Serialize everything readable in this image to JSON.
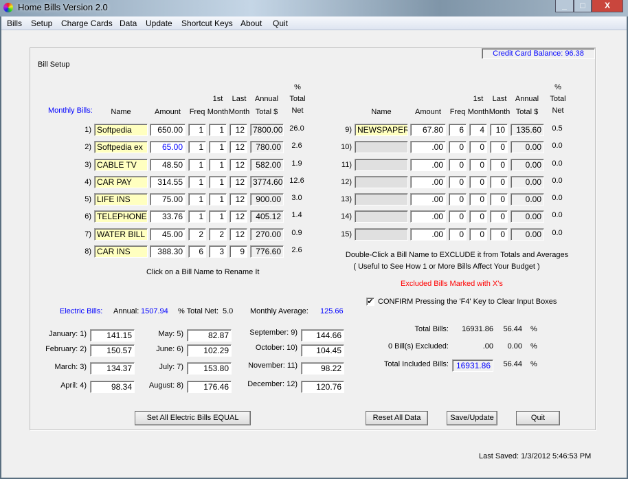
{
  "window": {
    "title": "Home Bills  Version 2.0",
    "controls": [
      "_",
      "□",
      "X"
    ]
  },
  "menu": [
    "Bills",
    "Setup",
    "Charge Cards",
    "Data",
    "Update",
    "Shortcut Keys",
    "About",
    "Quit"
  ],
  "credit_card_balance": "Credit Card Balance:  96.38",
  "group_title": "Bill Setup",
  "headers": {
    "monthly_bills": "Monthly Bills:",
    "name": "Name",
    "amount": "Amount",
    "freq": "Freq",
    "first": "1st",
    "first2": "Month",
    "last": "Last",
    "last2": "Month",
    "annual": "Annual",
    "annual2": "Total $",
    "pct": "%",
    "pct2": "Total",
    "pct3": "Net"
  },
  "bills_left": [
    {
      "n": "1)",
      "name": "Softpedia",
      "amount": "650.00",
      "freq": "1",
      "first": "1",
      "last": "12",
      "annual": "7800.00",
      "pct": "26.0"
    },
    {
      "n": "2)",
      "name": "Softpedia ex",
      "amount": "65.00",
      "freq": "1",
      "first": "1",
      "last": "12",
      "annual": "780.00",
      "pct": "2.6",
      "highlight": true
    },
    {
      "n": "3)",
      "name": "CABLE TV",
      "amount": "48.50",
      "freq": "1",
      "first": "1",
      "last": "12",
      "annual": "582.00",
      "pct": "1.9"
    },
    {
      "n": "4)",
      "name": "CAR PAY",
      "amount": "314.55",
      "freq": "1",
      "first": "1",
      "last": "12",
      "annual": "3774.60",
      "pct": "12.6"
    },
    {
      "n": "5)",
      "name": "LIFE INS",
      "amount": "75.00",
      "freq": "1",
      "first": "1",
      "last": "12",
      "annual": "900.00",
      "pct": "3.0"
    },
    {
      "n": "6)",
      "name": "TELEPHONE",
      "amount": "33.76",
      "freq": "1",
      "first": "1",
      "last": "12",
      "annual": "405.12",
      "pct": "1.4"
    },
    {
      "n": "7)",
      "name": "WATER BILL",
      "amount": "45.00",
      "freq": "2",
      "first": "2",
      "last": "12",
      "annual": "270.00",
      "pct": "0.9"
    },
    {
      "n": "8)",
      "name": "CAR INS",
      "amount": "388.30",
      "freq": "6",
      "first": "3",
      "last": "9",
      "annual": "776.60",
      "pct": "2.6"
    }
  ],
  "bills_right": [
    {
      "n": "9)",
      "name": "NEWSPAPER",
      "amount": "67.80",
      "freq": "6",
      "first": "4",
      "last": "10",
      "annual": "135.60",
      "pct": "0.5"
    },
    {
      "n": "10)",
      "name": "",
      "amount": ".00",
      "freq": "0",
      "first": "0",
      "last": "0",
      "annual": "0.00",
      "pct": "0.0"
    },
    {
      "n": "11)",
      "name": "",
      "amount": ".00",
      "freq": "0",
      "first": "0",
      "last": "0",
      "annual": "0.00",
      "pct": "0.0"
    },
    {
      "n": "12)",
      "name": "",
      "amount": ".00",
      "freq": "0",
      "first": "0",
      "last": "0",
      "annual": "0.00",
      "pct": "0.0"
    },
    {
      "n": "13)",
      "name": "",
      "amount": ".00",
      "freq": "0",
      "first": "0",
      "last": "0",
      "annual": "0.00",
      "pct": "0.0"
    },
    {
      "n": "14)",
      "name": "",
      "amount": ".00",
      "freq": "0",
      "first": "0",
      "last": "0",
      "annual": "0.00",
      "pct": "0.0"
    },
    {
      "n": "15)",
      "name": "",
      "amount": ".00",
      "freq": "0",
      "first": "0",
      "last": "0",
      "annual": "0.00",
      "pct": "0.0"
    }
  ],
  "rename_hint": "Click on a Bill Name to Rename It",
  "exclude_hint1": "Double-Click a Bill Name to EXCLUDE it from Totals and Averages",
  "exclude_hint2": "( Useful to See How 1 or More Bills Affect Your Budget )",
  "excluded_note": "Excluded Bills Marked with X's",
  "confirm_checkbox": {
    "label": "CONFIRM Pressing the 'F4' Key to Clear Input Boxes",
    "checked": true
  },
  "electric": {
    "label": "Electric Bills:",
    "annual_label": "Annual:",
    "annual": "1507.94",
    "pct_label": "% Total Net:",
    "pct": "5.0",
    "avg_label": "Monthly Average:",
    "avg": "125.66",
    "months": [
      {
        "label": "January: 1)",
        "value": "141.15"
      },
      {
        "label": "February: 2)",
        "value": "150.57"
      },
      {
        "label": "March: 3)",
        "value": "134.37"
      },
      {
        "label": "April: 4)",
        "value": "98.34"
      },
      {
        "label": "May: 5)",
        "value": "82.87"
      },
      {
        "label": "June: 6)",
        "value": "102.29"
      },
      {
        "label": "July: 7)",
        "value": "153.80"
      },
      {
        "label": "August: 8)",
        "value": "176.46"
      },
      {
        "label": "September:  9)",
        "value": "144.66"
      },
      {
        "label": "October:  10)",
        "value": "104.45"
      },
      {
        "label": "November:  11)",
        "value": "98.22"
      },
      {
        "label": "December:  12)",
        "value": "120.76"
      }
    ]
  },
  "totals": {
    "total_label": "Total Bills:",
    "total": "16931.86",
    "total_pct": "56.44",
    "excluded_label": "0 Bill(s) Excluded:",
    "excluded": ".00",
    "excluded_pct": "0.00",
    "included_label": "Total Included Bills:",
    "included": "16931.86",
    "included_pct": "56.44",
    "pct_sign": "%"
  },
  "buttons": {
    "set_equal": "Set All Electric Bills EQUAL",
    "reset": "Reset All Data",
    "save": "Save/Update",
    "quit": "Quit"
  },
  "last_saved": "Last Saved:  1/3/2012 5:46:53 PM"
}
